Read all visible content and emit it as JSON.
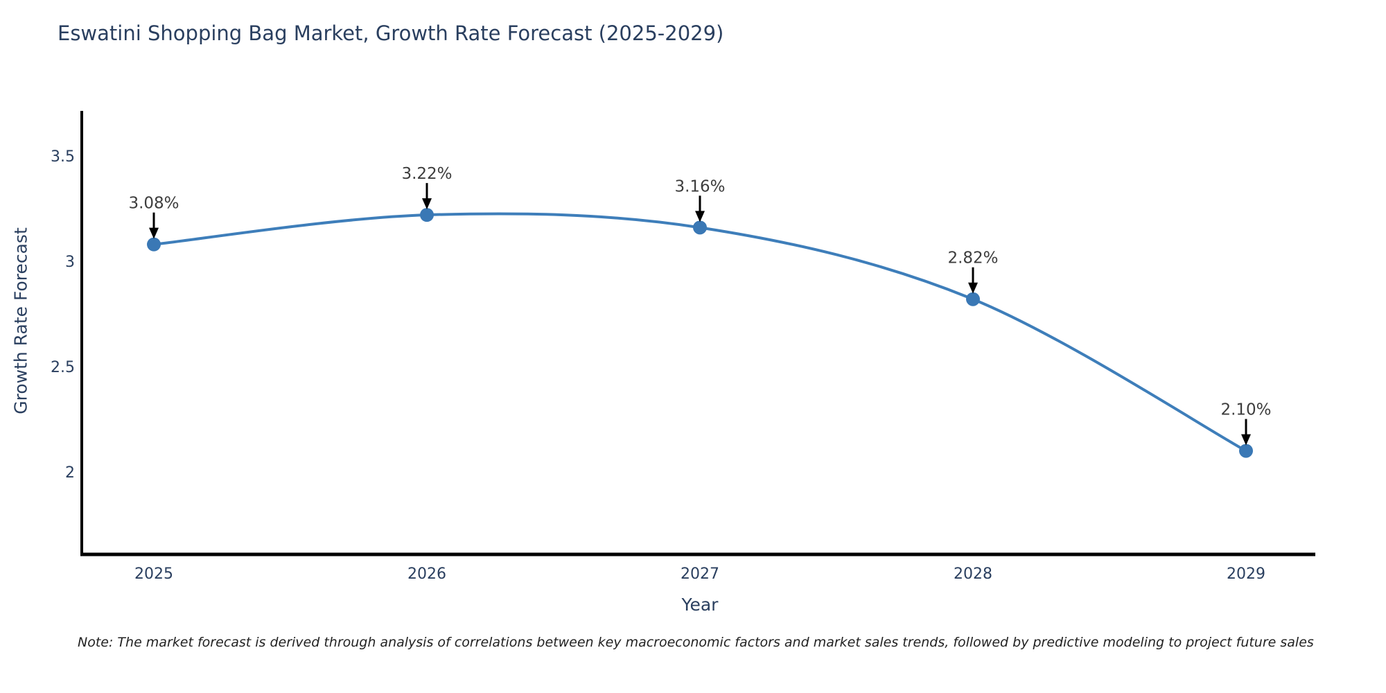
{
  "title": "Eswatini Shopping Bag Market, Growth Rate Forecast (2025-2029)",
  "note": "Note: The market forecast is derived through analysis of correlations between key macroeconomic factors and market sales trends, followed by predictive modeling to project future sales",
  "axes": {
    "x": {
      "label": "Year",
      "ticks": [
        "2025",
        "2026",
        "2027",
        "2028",
        "2029"
      ]
    },
    "y": {
      "label": "Growth Rate Forecast",
      "ticks": [
        {
          "label": "3.5",
          "value": 3.5
        },
        {
          "label": "3",
          "value": 3.0
        },
        {
          "label": "2.5",
          "value": 2.5
        },
        {
          "label": "2",
          "value": 2.0
        }
      ]
    }
  },
  "chart_data": {
    "type": "line",
    "title": "Eswatini Shopping Bag Market, Growth Rate Forecast (2025-2029)",
    "x": [
      2025,
      2026,
      2027,
      2028,
      2029
    ],
    "series": [
      {
        "name": "Growth Rate Forecast",
        "values": [
          3.08,
          3.22,
          3.16,
          2.82,
          2.1
        ]
      }
    ],
    "point_labels": [
      "3.08%",
      "3.22%",
      "3.16%",
      "2.82%",
      "2.10%"
    ],
    "xlabel": "Year",
    "ylabel": "Growth Rate Forecast",
    "ylim": [
      1.6,
      3.85
    ],
    "grid": false,
    "legend": false,
    "line_shape": "spline",
    "line_color": "#3e7eba",
    "marker_color": "#3a78b5",
    "axis_color": "#000000",
    "annotation_arrow_color": "#000000"
  },
  "colors": {
    "background": "#ffffff",
    "title_text": "#2a3f5f",
    "tick_text": "#2a3f5f",
    "annotation_text": "#3d3d3d",
    "note_text": "#222222"
  }
}
